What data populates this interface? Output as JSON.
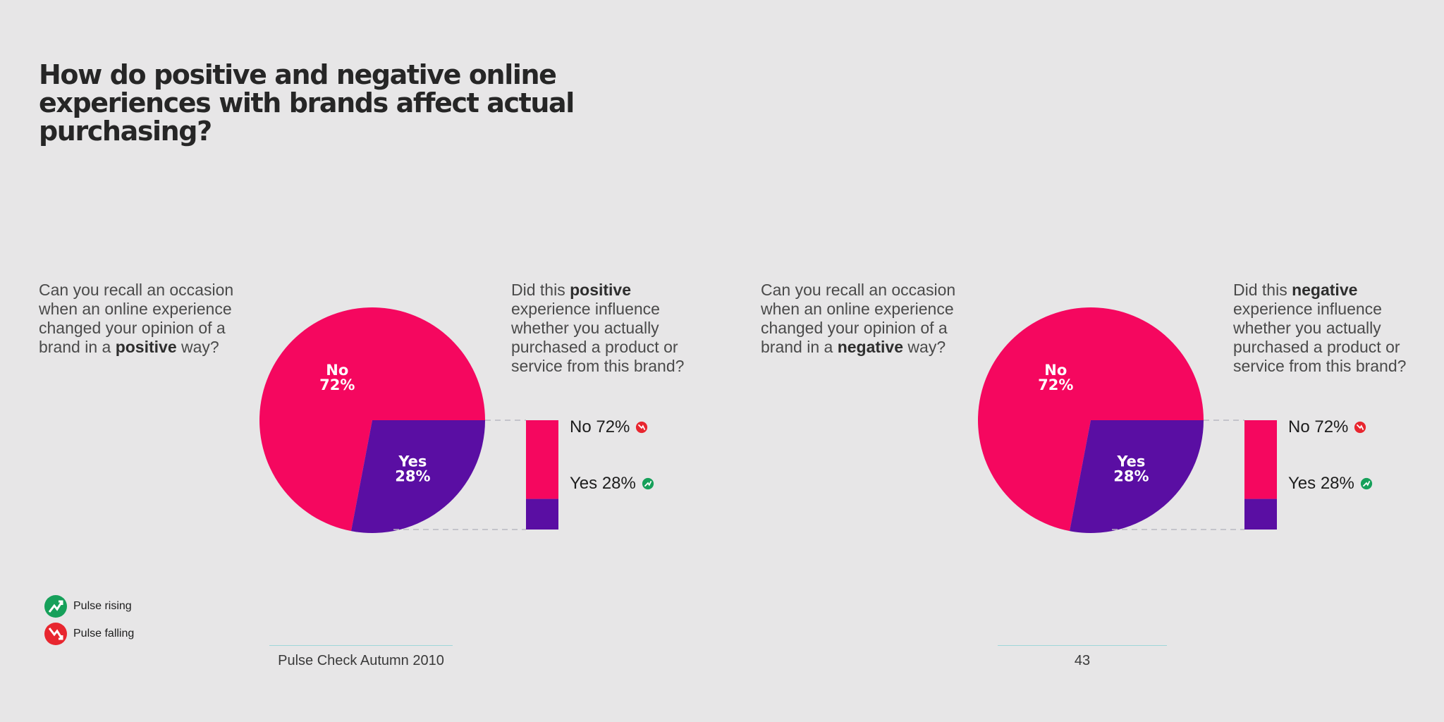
{
  "title": "How do positive and negative online experiences with brands affect actual purchasing?",
  "colors": {
    "no": "#f5075f",
    "yes": "#5a0ea3",
    "rising": "#16a05a",
    "falling": "#e8262f"
  },
  "panels": [
    {
      "recall_question": {
        "pre": "Can you recall an occasion when an online experience changed your opinion of a brand in a ",
        "bold": "positive",
        "post": " way?"
      },
      "influence_question": {
        "pre": "Did this ",
        "bold": "positive",
        "post": " experience influence whether you actually purchased a product or service from this brand?"
      },
      "legend": {
        "no": "No 72%",
        "yes": "Yes 28%"
      }
    },
    {
      "recall_question": {
        "pre": "Can you recall an occasion when an online experience changed your opinion of a brand in a ",
        "bold": "negative",
        "post": " way?"
      },
      "influence_question": {
        "pre": "Did this ",
        "bold": "negative",
        "post": " experience influence whether you actually purchased a product or service from this brand?"
      },
      "legend": {
        "no": "No 72%",
        "yes": "Yes 28%"
      }
    }
  ],
  "chart_data": [
    {
      "type": "pie",
      "categories": [
        "No",
        "Yes"
      ],
      "values": [
        72,
        28
      ],
      "labels": {
        "no_name": "No",
        "no_pct": "72%",
        "yes_name": "Yes",
        "yes_pct": "28%"
      },
      "breakdown": {
        "type": "bar",
        "stacked": true,
        "categories": [
          "No",
          "Yes"
        ],
        "values": [
          72,
          28
        ],
        "icons": [
          "pulse-falling",
          "pulse-rising"
        ]
      }
    },
    {
      "type": "pie",
      "categories": [
        "No",
        "Yes"
      ],
      "values": [
        72,
        28
      ],
      "labels": {
        "no_name": "No",
        "no_pct": "72%",
        "yes_name": "Yes",
        "yes_pct": "28%"
      },
      "breakdown": {
        "type": "bar",
        "stacked": true,
        "categories": [
          "No",
          "Yes"
        ],
        "values": [
          72,
          28
        ],
        "icons": [
          "pulse-falling",
          "pulse-rising"
        ]
      }
    }
  ],
  "key": {
    "rising": "Pulse rising",
    "falling": "Pulse falling"
  },
  "footer": {
    "publication": "Pulse Check Autumn 2010",
    "page_number": "43"
  }
}
